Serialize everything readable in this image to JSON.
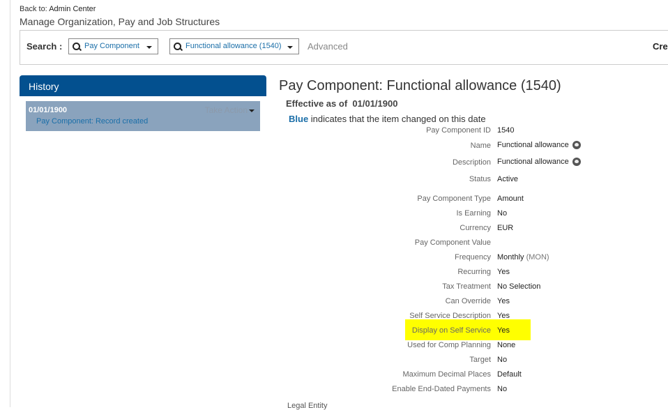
{
  "header": {
    "back_prefix": "Back to:",
    "back_link": "Admin Center",
    "title": "Manage Organization, Pay and Job Structures"
  },
  "search": {
    "label": "Search :",
    "type_value": "Pay Component",
    "item_value": "Functional allowance (1540)",
    "advanced": "Advanced",
    "create_cut": "Crea"
  },
  "history": {
    "title": "History",
    "entries": [
      {
        "date": "01/01/1900",
        "action": "Take Action",
        "desc": "Pay Component: Record created"
      }
    ]
  },
  "detail": {
    "title": "Pay Component: Functional allowance (1540)",
    "effective_label": "Effective as of",
    "effective_date": "01/01/1900",
    "legend_blue": "Blue",
    "legend_text": "indicates that the item changed on this date",
    "fields": [
      {
        "label": "Pay Component ID",
        "value": "1540"
      },
      {
        "label": "Name",
        "value": "Functional allowance",
        "globe": true
      },
      {
        "label": "Description",
        "value": "Functional allowance",
        "globe": true
      },
      {
        "label": "Status",
        "value": "Active"
      },
      {
        "label": "Pay Component Type",
        "value": "Amount"
      },
      {
        "label": "Is Earning",
        "value": "No"
      },
      {
        "label": "Currency",
        "value": "EUR"
      },
      {
        "label": "Pay Component Value",
        "value": ""
      },
      {
        "label": "Frequency",
        "value": "Monthly",
        "sub": "(MON)"
      },
      {
        "label": "Recurring",
        "value": "Yes"
      },
      {
        "label": "Tax Treatment",
        "value": "No Selection"
      },
      {
        "label": "Can Override",
        "value": "Yes"
      },
      {
        "label": "Self Service Description",
        "value": "Yes"
      },
      {
        "label": "Display on Self Service",
        "value": "Yes",
        "highlighted": true
      },
      {
        "label": "Used for Comp Planning",
        "value": "None"
      },
      {
        "label": "Target",
        "value": "No"
      },
      {
        "label": "Maximum Decimal Places",
        "value": "Default"
      },
      {
        "label": "Enable End-Dated Payments",
        "value": "No"
      }
    ],
    "legal_entity_label": "Legal Entity"
  },
  "colors": {
    "brand": "#03508f",
    "link": "#1a6ea8",
    "highlight": "#ffff00"
  }
}
